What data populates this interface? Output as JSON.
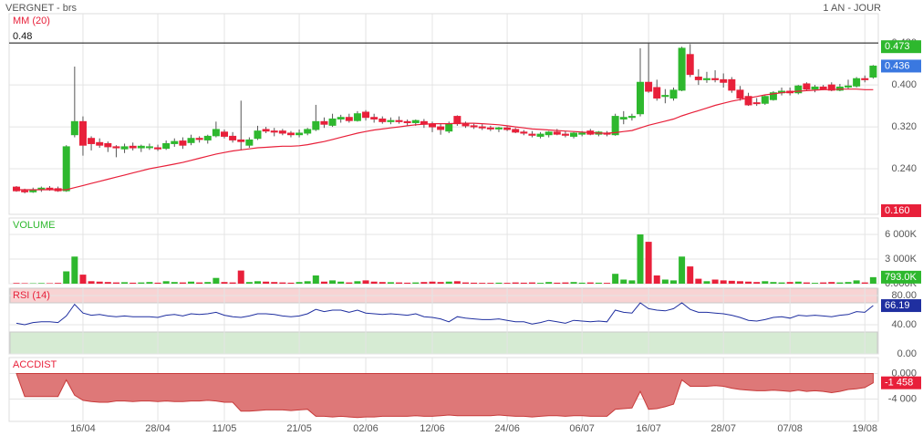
{
  "header": {
    "title": "VERGNET - brs",
    "period": "1 AN - JOUR"
  },
  "chart_data": [
    {
      "type": "candlestick",
      "up_color": "#2eb82e",
      "down_color": "#e8203a",
      "categories": [
        null,
        null,
        null,
        null,
        null,
        null,
        null,
        null,
        "16/04",
        null,
        null,
        null,
        null,
        null,
        null,
        null,
        null,
        "28/04",
        null,
        null,
        null,
        null,
        null,
        null,
        null,
        "11/05",
        null,
        null,
        null,
        null,
        null,
        null,
        null,
        null,
        "21/05",
        null,
        null,
        null,
        null,
        null,
        null,
        null,
        "02/06",
        null,
        null,
        null,
        null,
        null,
        null,
        null,
        "12/06",
        null,
        null,
        null,
        null,
        null,
        null,
        null,
        null,
        "24/06",
        null,
        null,
        null,
        null,
        null,
        null,
        null,
        null,
        "06/07",
        null,
        null,
        null,
        null,
        null,
        null,
        null,
        "16/07",
        null,
        null,
        null,
        null,
        null,
        null,
        null,
        null,
        "28/07",
        null,
        null,
        null,
        null,
        null,
        null,
        null,
        "07/08",
        null,
        null,
        null,
        null,
        null,
        null,
        null,
        null,
        "19/08",
        null
      ],
      "ohlc": [
        [
          0.205,
          0.207,
          0.196,
          0.198
        ],
        [
          0.198,
          0.202,
          0.193,
          0.196
        ],
        [
          0.196,
          0.204,
          0.194,
          0.2
        ],
        [
          0.2,
          0.206,
          0.196,
          0.203
        ],
        [
          0.203,
          0.207,
          0.198,
          0.202
        ],
        [
          0.202,
          0.206,
          0.196,
          0.198
        ],
        [
          0.198,
          0.285,
          0.196,
          0.282
        ],
        [
          0.305,
          0.435,
          0.3,
          0.33
        ],
        [
          0.33,
          0.34,
          0.265,
          0.285
        ],
        [
          0.298,
          0.302,
          0.275,
          0.288
        ],
        [
          0.29,
          0.298,
          0.28,
          0.285
        ],
        [
          0.288,
          0.292,
          0.272,
          0.282
        ],
        [
          0.282,
          0.285,
          0.262,
          0.28
        ],
        [
          0.278,
          0.288,
          0.27,
          0.282
        ],
        [
          0.283,
          0.29,
          0.275,
          0.28
        ],
        [
          0.28,
          0.286,
          0.272,
          0.283
        ],
        [
          0.281,
          0.288,
          0.276,
          0.282
        ],
        [
          0.28,
          0.286,
          0.274,
          0.278
        ],
        [
          0.279,
          0.294,
          0.276,
          0.288
        ],
        [
          0.288,
          0.298,
          0.282,
          0.292
        ],
        [
          0.293,
          0.3,
          0.278,
          0.285
        ],
        [
          0.29,
          0.305,
          0.285,
          0.298
        ],
        [
          0.298,
          0.302,
          0.29,
          0.296
        ],
        [
          0.295,
          0.305,
          0.288,
          0.302
        ],
        [
          0.303,
          0.33,
          0.3,
          0.315
        ],
        [
          0.31,
          0.315,
          0.298,
          0.302
        ],
        [
          0.302,
          0.31,
          0.29,
          0.295
        ],
        [
          0.295,
          0.37,
          0.275,
          0.292
        ],
        [
          0.285,
          0.3,
          0.28,
          0.295
        ],
        [
          0.298,
          0.322,
          0.295,
          0.312
        ],
        [
          0.315,
          0.32,
          0.308,
          0.312
        ],
        [
          0.312,
          0.318,
          0.302,
          0.31
        ],
        [
          0.312,
          0.316,
          0.304,
          0.308
        ],
        [
          0.308,
          0.312,
          0.3,
          0.305
        ],
        [
          0.305,
          0.315,
          0.3,
          0.308
        ],
        [
          0.308,
          0.318,
          0.304,
          0.315
        ],
        [
          0.315,
          0.362,
          0.312,
          0.33
        ],
        [
          0.33,
          0.338,
          0.318,
          0.325
        ],
        [
          0.323,
          0.345,
          0.32,
          0.335
        ],
        [
          0.335,
          0.343,
          0.328,
          0.338
        ],
        [
          0.338,
          0.345,
          0.328,
          0.332
        ],
        [
          0.332,
          0.35,
          0.33,
          0.345
        ],
        [
          0.348,
          0.352,
          0.332,
          0.338
        ],
        [
          0.338,
          0.345,
          0.328,
          0.335
        ],
        [
          0.335,
          0.34,
          0.326,
          0.33
        ],
        [
          0.33,
          0.338,
          0.325,
          0.332
        ],
        [
          0.332,
          0.34,
          0.326,
          0.33
        ],
        [
          0.33,
          0.334,
          0.322,
          0.328
        ],
        [
          0.328,
          0.334,
          0.322,
          0.332
        ],
        [
          0.33,
          0.335,
          0.318,
          0.325
        ],
        [
          0.325,
          0.33,
          0.31,
          0.32
        ],
        [
          0.32,
          0.326,
          0.305,
          0.315
        ],
        [
          0.312,
          0.33,
          0.308,
          0.325
        ],
        [
          0.34,
          0.342,
          0.322,
          0.326
        ],
        [
          0.326,
          0.33,
          0.318,
          0.322
        ],
        [
          0.322,
          0.326,
          0.316,
          0.32
        ],
        [
          0.32,
          0.325,
          0.314,
          0.318
        ],
        [
          0.318,
          0.322,
          0.312,
          0.316
        ],
        [
          0.316,
          0.32,
          0.31,
          0.318
        ],
        [
          0.318,
          0.322,
          0.312,
          0.315
        ],
        [
          0.315,
          0.318,
          0.308,
          0.31
        ],
        [
          0.31,
          0.314,
          0.304,
          0.308
        ],
        [
          0.306,
          0.312,
          0.3,
          0.304
        ],
        [
          0.302,
          0.31,
          0.298,
          0.306
        ],
        [
          0.305,
          0.312,
          0.3,
          0.31
        ],
        [
          0.31,
          0.316,
          0.304,
          0.306
        ],
        [
          0.306,
          0.312,
          0.3,
          0.304
        ],
        [
          0.302,
          0.31,
          0.298,
          0.308
        ],
        [
          0.306,
          0.312,
          0.302,
          0.308
        ],
        [
          0.312,
          0.316,
          0.304,
          0.306
        ],
        [
          0.306,
          0.312,
          0.302,
          0.31
        ],
        [
          0.308,
          0.312,
          0.302,
          0.306
        ],
        [
          0.305,
          0.345,
          0.303,
          0.34
        ],
        [
          0.335,
          0.35,
          0.325,
          0.338
        ],
        [
          0.338,
          0.345,
          0.332,
          0.34
        ],
        [
          0.345,
          0.47,
          0.34,
          0.405
        ],
        [
          0.405,
          0.48,
          0.385,
          0.388
        ],
        [
          0.395,
          0.41,
          0.37,
          0.375
        ],
        [
          0.378,
          0.392,
          0.365,
          0.38
        ],
        [
          0.375,
          0.395,
          0.37,
          0.39
        ],
        [
          0.39,
          0.473,
          0.388,
          0.47
        ],
        [
          0.458,
          0.478,
          0.415,
          0.42
        ],
        [
          0.415,
          0.43,
          0.4,
          0.41
        ],
        [
          0.41,
          0.425,
          0.404,
          0.412
        ],
        [
          0.412,
          0.428,
          0.405,
          0.41
        ],
        [
          0.41,
          0.422,
          0.395,
          0.405
        ],
        [
          0.41,
          0.415,
          0.385,
          0.39
        ],
        [
          0.39,
          0.398,
          0.37,
          0.375
        ],
        [
          0.378,
          0.385,
          0.36,
          0.362
        ],
        [
          0.366,
          0.375,
          0.36,
          0.365
        ],
        [
          0.365,
          0.38,
          0.362,
          0.378
        ],
        [
          0.372,
          0.388,
          0.37,
          0.385
        ],
        [
          0.385,
          0.395,
          0.38,
          0.388
        ],
        [
          0.388,
          0.395,
          0.38,
          0.385
        ],
        [
          0.385,
          0.4,
          0.382,
          0.398
        ],
        [
          0.402,
          0.405,
          0.388,
          0.392
        ],
        [
          0.392,
          0.4,
          0.386,
          0.396
        ],
        [
          0.396,
          0.4,
          0.39,
          0.392
        ],
        [
          0.4,
          0.405,
          0.388,
          0.39
        ],
        [
          0.39,
          0.402,
          0.388,
          0.396
        ],
        [
          0.396,
          0.41,
          0.392,
          0.398
        ],
        [
          0.398,
          0.415,
          0.395,
          0.412
        ],
        [
          0.412,
          0.418,
          0.405,
          0.41
        ],
        [
          0.415,
          0.438,
          0.412,
          0.436
        ]
      ],
      "ma": {
        "name": "MM (20)",
        "color": "#e8203a",
        "values": [
          0.2,
          0.2,
          0.2,
          0.2,
          0.2,
          0.2,
          0.2,
          0.204,
          0.208,
          0.212,
          0.216,
          0.22,
          0.224,
          0.228,
          0.232,
          0.236,
          0.24,
          0.243,
          0.246,
          0.249,
          0.252,
          0.256,
          0.26,
          0.264,
          0.268,
          0.271,
          0.274,
          0.276,
          0.278,
          0.28,
          0.281,
          0.282,
          0.283,
          0.283,
          0.284,
          0.286,
          0.289,
          0.292,
          0.296,
          0.3,
          0.304,
          0.308,
          0.311,
          0.314,
          0.316,
          0.318,
          0.32,
          0.322,
          0.324,
          0.325,
          0.326,
          0.326,
          0.326,
          0.327,
          0.327,
          0.327,
          0.326,
          0.325,
          0.324,
          0.322,
          0.32,
          0.318,
          0.316,
          0.315,
          0.314,
          0.313,
          0.312,
          0.311,
          0.31,
          0.309,
          0.308,
          0.308,
          0.309,
          0.311,
          0.313,
          0.318,
          0.323,
          0.327,
          0.331,
          0.335,
          0.341,
          0.346,
          0.351,
          0.356,
          0.361,
          0.365,
          0.369,
          0.372,
          0.375,
          0.378,
          0.381,
          0.383,
          0.385,
          0.387,
          0.388,
          0.389,
          0.39,
          0.391,
          0.391,
          0.392,
          0.392,
          0.392,
          0.391,
          0.391
        ]
      },
      "hline": 0.48,
      "ylim": [
        0.153,
        0.536
      ],
      "yticks": [
        {
          "value": 0.24,
          "label": "0.240"
        },
        {
          "value": 0.32,
          "label": "0.320"
        },
        {
          "value": 0.4,
          "label": "0.400"
        },
        {
          "value": 0.48,
          "label": "0.480"
        }
      ],
      "value_boxes": [
        {
          "value": 0.473,
          "color": "#2eb82e"
        },
        {
          "value": 0.436,
          "color": "#3a78e0"
        },
        {
          "value": 0.16,
          "label": "0.160",
          "color": "#e8203a"
        }
      ]
    },
    {
      "type": "volume",
      "title": "VOLUME",
      "title_color": "#2eb82e",
      "values": [
        80,
        60,
        50,
        70,
        60,
        90,
        1500,
        3300,
        1100,
        300,
        250,
        200,
        150,
        180,
        120,
        150,
        200,
        120,
        300,
        200,
        150,
        250,
        150,
        200,
        700,
        200,
        150,
        1600,
        200,
        300,
        250,
        200,
        150,
        120,
        200,
        300,
        1000,
        250,
        400,
        250,
        150,
        300,
        400,
        250,
        200,
        180,
        150,
        120,
        150,
        200,
        250,
        200,
        250,
        300,
        150,
        120,
        100,
        100,
        120,
        100,
        150,
        120,
        150,
        100,
        200,
        120,
        150,
        200,
        120,
        150,
        120,
        100,
        1200,
        500,
        400,
        6000,
        5100,
        1000,
        500,
        400,
        3300,
        2100,
        600,
        300,
        500,
        400,
        350,
        300,
        250,
        200,
        300,
        200,
        150,
        200,
        250,
        150,
        100,
        150,
        200,
        150,
        200,
        400,
        150,
        793
      ],
      "ylim": [
        0,
        8000
      ],
      "yticks": [
        {
          "value": 0,
          "label": "0.000K"
        },
        {
          "value": 3000,
          "label": "3 000K"
        },
        {
          "value": 6000,
          "label": "6 000K"
        }
      ],
      "value_boxes": [
        {
          "value": 793,
          "label": "793.0K",
          "color": "#2eb82e"
        }
      ]
    },
    {
      "type": "line",
      "title": "RSI (14)",
      "title_color": "#e8203a",
      "color": "#1f2fa0",
      "values": [
        42,
        40,
        43,
        44,
        44,
        43,
        52,
        68,
        56,
        53,
        54,
        52,
        51,
        52,
        51,
        51,
        51,
        50,
        53,
        54,
        52,
        55,
        54,
        55,
        57,
        53,
        51,
        50,
        52,
        55,
        55,
        54,
        52,
        51,
        52,
        55,
        61,
        58,
        60,
        60,
        57,
        60,
        56,
        55,
        54,
        55,
        54,
        53,
        55,
        51,
        50,
        48,
        44,
        51,
        49,
        48,
        47,
        47,
        48,
        46,
        44,
        44,
        41,
        43,
        46,
        44,
        42,
        46,
        45,
        44,
        45,
        44,
        60,
        57,
        56,
        70,
        62,
        60,
        59,
        62,
        70,
        61,
        57,
        57,
        56,
        55,
        53,
        50,
        46,
        45,
        47,
        50,
        51,
        49,
        53,
        52,
        53,
        52,
        51,
        53,
        54,
        58,
        57,
        66.19
      ],
      "ylim": [
        0,
        90
      ],
      "yticks": [
        {
          "value": 0,
          "label": "0.00"
        },
        {
          "value": 40,
          "label": "40.00"
        },
        {
          "value": 80,
          "label": "80.00"
        }
      ],
      "bands": [
        {
          "from": 70,
          "to": 90,
          "color": "#f8d3d3"
        },
        {
          "from": 0,
          "to": 30,
          "color": "#d6ebd3"
        }
      ],
      "value_boxes": [
        {
          "value": 66.19,
          "color": "#1f2fa0"
        }
      ]
    },
    {
      "type": "area",
      "title": "ACCDIST",
      "title_color": "#e8203a",
      "color": "#de7878",
      "line_color": "#c83a3a",
      "values": [
        0,
        -3600,
        -3600,
        -3600,
        -3600,
        -3600,
        -1000,
        -3400,
        -4200,
        -4400,
        -4500,
        -4500,
        -4300,
        -4300,
        -4400,
        -4300,
        -4300,
        -4400,
        -4300,
        -4400,
        -4400,
        -4300,
        -4300,
        -4200,
        -4300,
        -4500,
        -4500,
        -5900,
        -5900,
        -5800,
        -5700,
        -5700,
        -5700,
        -5800,
        -5700,
        -5600,
        -6700,
        -6700,
        -6800,
        -6700,
        -6800,
        -6900,
        -6800,
        -6800,
        -6700,
        -6700,
        -6700,
        -6700,
        -6600,
        -6700,
        -6700,
        -6600,
        -6500,
        -6600,
        -6600,
        -6600,
        -6600,
        -6600,
        -6500,
        -6600,
        -6700,
        -6700,
        -6800,
        -6700,
        -6600,
        -6600,
        -6700,
        -6600,
        -6600,
        -6700,
        -6700,
        -6700,
        -5600,
        -5500,
        -5400,
        -2800,
        -5600,
        -5500,
        -5200,
        -4800,
        -1000,
        -2000,
        -2000,
        -2000,
        -1900,
        -2000,
        -2300,
        -2500,
        -2600,
        -2700,
        -2700,
        -2600,
        -2700,
        -2800,
        -2600,
        -2800,
        -2700,
        -2800,
        -3000,
        -2800,
        -2500,
        -2400,
        -2200,
        -1458
      ],
      "ylim": [
        -7500,
        2500
      ],
      "yticks": [
        {
          "value": 0,
          "label": "0.000"
        },
        {
          "value": -4000,
          "label": "-4 000"
        }
      ],
      "value_boxes": [
        {
          "value": -1458,
          "label": "-1 458",
          "color": "#e8203a"
        }
      ]
    }
  ]
}
